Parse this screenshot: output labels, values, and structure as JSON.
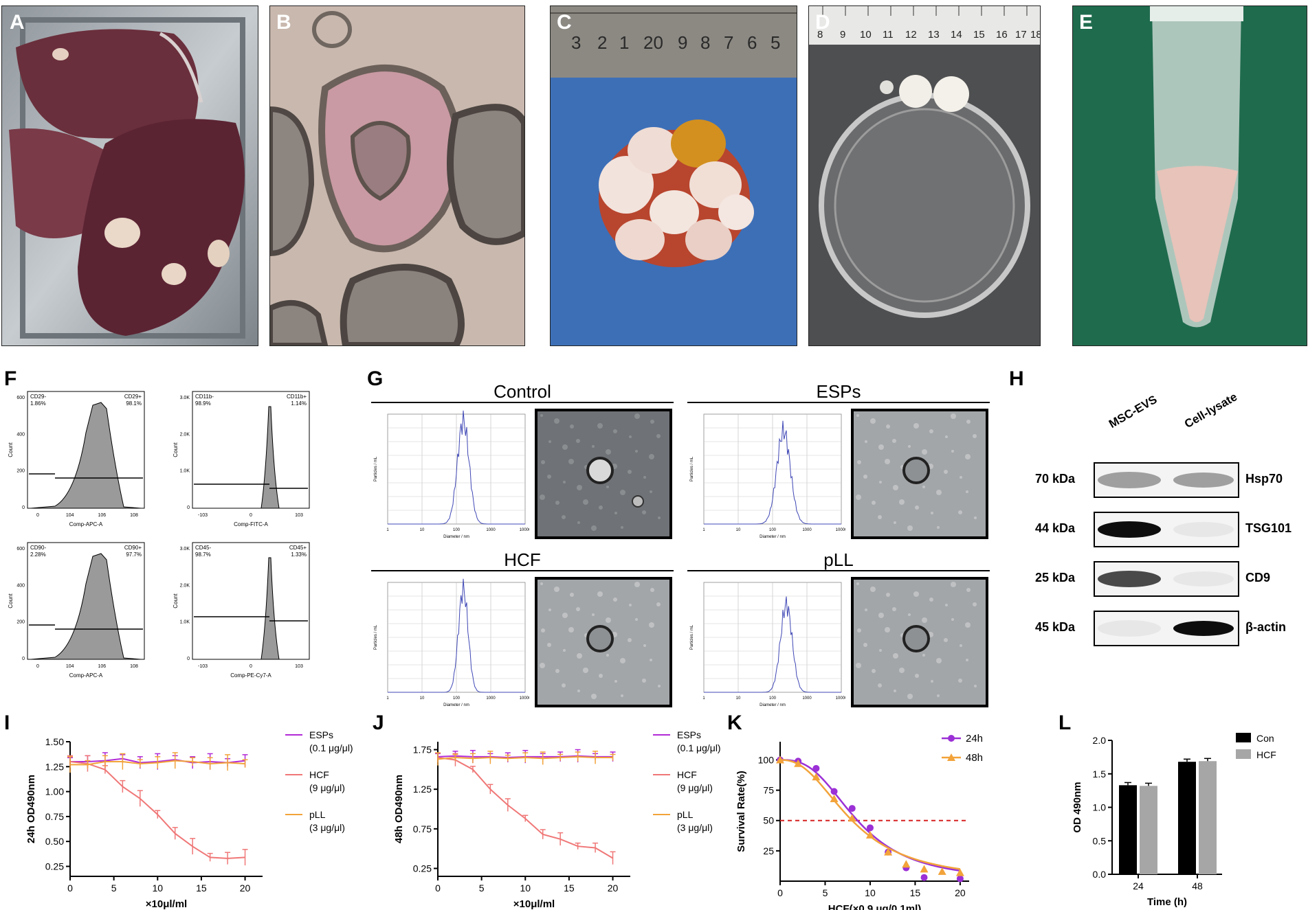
{
  "panels": {
    "A": "A",
    "B": "B",
    "C": "C",
    "D": "D",
    "E": "E",
    "F": "F",
    "G": "G",
    "H": "H",
    "I": "I",
    "J": "J",
    "K": "K",
    "L": "L"
  },
  "photos": {
    "C_ruler_digits": [
      "3",
      "2",
      "1",
      "20",
      "9",
      "8",
      "7",
      "6",
      "5"
    ],
    "D_ruler_digits": [
      "8",
      "9",
      "10",
      "11",
      "12",
      "13",
      "14",
      "15",
      "16",
      "17",
      "18"
    ]
  },
  "flow": [
    {
      "left_gate": "CD29-",
      "left_pct": "1.86%",
      "right_gate": "CD29+",
      "right_pct": "98.1%",
      "ylab": "Count",
      "xlab": "Comp-APC-A",
      "yticks": [
        "600",
        "400",
        "200",
        "0"
      ],
      "xticks": [
        "0",
        "10^4",
        "10^6",
        "10^8"
      ]
    },
    {
      "left_gate": "CD11b-",
      "left_pct": "98.9%",
      "right_gate": "CD11b+",
      "right_pct": "1.14%",
      "ylab": "Count",
      "xlab": "Comp-FITC-A",
      "yticks": [
        "3.0K",
        "2.0K",
        "1.0K",
        "0"
      ],
      "xticks": [
        "-10^3",
        "0",
        "10^3"
      ]
    },
    {
      "left_gate": "CD90-",
      "left_pct": "2.28%",
      "right_gate": "CD90+",
      "right_pct": "97.7%",
      "ylab": "Count",
      "xlab": "Comp-APC-A",
      "yticks": [
        "600",
        "400",
        "200",
        "0"
      ],
      "xticks": [
        "0",
        "10^4",
        "10^6",
        "10^8"
      ]
    },
    {
      "left_gate": "CD45-",
      "left_pct": "98.7%",
      "right_gate": "CD45+",
      "right_pct": "1.33%",
      "ylab": "Count",
      "xlab": "Comp-PE-Cy7-A",
      "yticks": [
        "3.0K",
        "2.0K",
        "1.0K",
        "0"
      ],
      "xticks": [
        "-10^3",
        "0",
        "10^3"
      ]
    }
  ],
  "nta": [
    {
      "title": "Control",
      "ylab": "Particles / mL",
      "xlab": "Diameter / nm",
      "xticks": [
        "1",
        "10",
        "100",
        "1000",
        "10000"
      ]
    },
    {
      "title": "ESPs",
      "ylab": "Particles / mL",
      "xlab": "Diameter / nm",
      "xticks": [
        "1",
        "10",
        "100",
        "1000",
        "10000"
      ]
    },
    {
      "title": "HCF",
      "ylab": "Particles / mL",
      "xlab": "Diameter / nm",
      "xticks": [
        "1",
        "10",
        "100",
        "1000",
        "10000"
      ]
    },
    {
      "title": "pLL",
      "ylab": "Particles / mL",
      "xlab": "Diameter / nm",
      "xticks": [
        "1",
        "10",
        "100",
        "1000",
        "10000"
      ]
    }
  ],
  "western": {
    "lanes": [
      "MSC-EVS",
      "Cell-lysate"
    ],
    "rows": [
      {
        "kda": "70 kDa",
        "protein": "Hsp70"
      },
      {
        "kda": "44 kDa",
        "protein": "TSG101"
      },
      {
        "kda": "25 kDa",
        "protein": "CD9"
      },
      {
        "kda": "45 kDa",
        "protein": "β-actin"
      }
    ]
  },
  "colors": {
    "esps": "#b22ad6",
    "hcf": "#f07777",
    "pll": "#f2a33a",
    "k24": "#9b30d6",
    "k48": "#f2a33a",
    "con": "#000000",
    "hcfbar": "#a6a6a6",
    "ref": "#d62020"
  },
  "chart_data": [
    {
      "id": "I",
      "type": "line",
      "ylabel": "24h OD490nm",
      "xlabel": "×10μl/ml",
      "xlim": [
        0,
        22
      ],
      "ylim": [
        0.15,
        1.5
      ],
      "xticks": [
        0,
        5,
        10,
        15,
        20
      ],
      "yticks": [
        0.25,
        0.5,
        0.75,
        1.0,
        1.25,
        1.5
      ],
      "ytick_labels": [
        "0.25",
        "0.50",
        "0.75",
        "1.00",
        "1.25",
        "1.50"
      ],
      "x": [
        0,
        2,
        4,
        6,
        8,
        10,
        12,
        14,
        16,
        18,
        20
      ],
      "series": [
        {
          "name": "ESPs",
          "sub": "(0.1 μg/μl)",
          "values": [
            1.3,
            1.3,
            1.31,
            1.33,
            1.29,
            1.3,
            1.32,
            1.29,
            1.3,
            1.29,
            1.31
          ]
        },
        {
          "name": "HCF",
          "sub": "(9 μg/μl)",
          "values": [
            1.3,
            1.28,
            1.22,
            1.05,
            0.93,
            0.77,
            0.58,
            0.45,
            0.34,
            0.33,
            0.34
          ]
        },
        {
          "name": "pLL",
          "sub": "(3 μg/μl)",
          "values": [
            1.27,
            1.27,
            1.3,
            1.3,
            1.28,
            1.29,
            1.31,
            1.3,
            1.28,
            1.29,
            1.28
          ]
        }
      ]
    },
    {
      "id": "J",
      "type": "line",
      "ylabel": "48h OD490nm",
      "xlabel": "×10μl/ml",
      "xlim": [
        0,
        22
      ],
      "ylim": [
        0.15,
        1.85
      ],
      "xticks": [
        0,
        5,
        10,
        15,
        20
      ],
      "yticks": [
        0.25,
        0.75,
        1.25,
        1.75
      ],
      "ytick_labels": [
        "0.25",
        "0.75",
        "1.25",
        "1.75"
      ],
      "x": [
        0,
        2,
        4,
        6,
        8,
        10,
        12,
        14,
        16,
        18,
        20
      ],
      "series": [
        {
          "name": "ESPs",
          "sub": "(0.1 μg/μl)",
          "values": [
            1.66,
            1.67,
            1.66,
            1.66,
            1.65,
            1.66,
            1.66,
            1.66,
            1.67,
            1.66,
            1.66
          ]
        },
        {
          "name": "HCF",
          "sub": "(9 μg/μl)",
          "values": [
            1.65,
            1.62,
            1.5,
            1.25,
            1.05,
            0.88,
            0.68,
            0.62,
            0.53,
            0.51,
            0.38
          ]
        },
        {
          "name": "pLL",
          "sub": "(3 μg/μl)",
          "values": [
            1.63,
            1.65,
            1.64,
            1.65,
            1.64,
            1.65,
            1.64,
            1.65,
            1.66,
            1.65,
            1.65
          ]
        }
      ]
    },
    {
      "id": "K",
      "type": "line",
      "ylabel": "Survival Rate(%)",
      "xlabel": "HCF(×0.9 μg/0.1ml)",
      "xlim": [
        0,
        21
      ],
      "ylim": [
        0,
        115
      ],
      "xticks": [
        0,
        5,
        10,
        15,
        20
      ],
      "yticks": [
        25,
        50,
        75,
        100
      ],
      "ytick_labels": [
        "25",
        "50",
        "75",
        "100"
      ],
      "reference_y": 50,
      "series": [
        {
          "name": "24h",
          "x": [
            0,
            2,
            4,
            6,
            8,
            10,
            12,
            14,
            16,
            20
          ],
          "values": [
            100,
            99,
            93,
            74,
            60,
            44,
            24,
            11,
            3,
            2
          ]
        },
        {
          "name": "48h",
          "x": [
            0,
            2,
            4,
            6,
            8,
            10,
            12,
            14,
            16,
            18,
            20
          ],
          "values": [
            100,
            97,
            86,
            68,
            52,
            38,
            24,
            14,
            10,
            8,
            7
          ]
        }
      ]
    },
    {
      "id": "L",
      "type": "bar",
      "ylabel": "OD 490nm",
      "xlabel": "Time (h)",
      "categories": [
        "24",
        "48"
      ],
      "ylim": [
        0,
        2.0
      ],
      "yticks": [
        0.0,
        0.5,
        1.0,
        1.5,
        2.0
      ],
      "ytick_labels": [
        "0.0",
        "0.5",
        "1.0",
        "1.5",
        "2.0"
      ],
      "series": [
        {
          "name": "Con",
          "values": [
            1.33,
            1.68
          ]
        },
        {
          "name": "HCF",
          "values": [
            1.32,
            1.69
          ]
        }
      ]
    }
  ]
}
